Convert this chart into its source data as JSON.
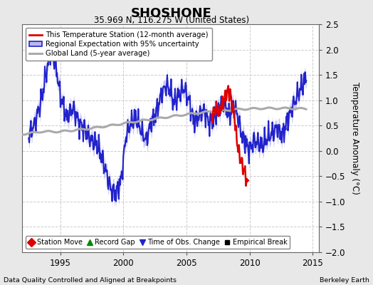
{
  "title": "SHOSHONE",
  "subtitle": "35.969 N, 116.275 W (United States)",
  "ylabel": "Temperature Anomaly (°C)",
  "footer_left": "Data Quality Controlled and Aligned at Breakpoints",
  "footer_right": "Berkeley Earth",
  "xlim": [
    1992.0,
    2015.5
  ],
  "ylim": [
    -2.0,
    2.5
  ],
  "yticks": [
    -2,
    -1.5,
    -1,
    -0.5,
    0,
    0.5,
    1,
    1.5,
    2,
    2.5
  ],
  "xticks": [
    1995,
    2000,
    2005,
    2010,
    2015
  ],
  "bg_color": "#e8e8e8",
  "plot_bg_color": "#ffffff",
  "regional_color": "#2222cc",
  "regional_fill_color": "#b8b8ee",
  "station_color": "#dd0000",
  "global_color": "#aaaaaa",
  "legend_items": [
    {
      "label": "This Temperature Station (12-month average)",
      "color": "#dd0000",
      "lw": 2.0
    },
    {
      "label": "Regional Expectation with 95% uncertainty",
      "color": "#2222cc",
      "lw": 2.0
    },
    {
      "label": "Global Land (5-year average)",
      "color": "#aaaaaa",
      "lw": 2.5
    }
  ],
  "bottom_legend": [
    {
      "label": "Station Move",
      "color": "#dd0000",
      "marker": "D"
    },
    {
      "label": "Record Gap",
      "color": "#008800",
      "marker": "^"
    },
    {
      "label": "Time of Obs. Change",
      "color": "#2222cc",
      "marker": "v"
    },
    {
      "label": "Empirical Break",
      "color": "#000000",
      "marker": "s"
    }
  ]
}
